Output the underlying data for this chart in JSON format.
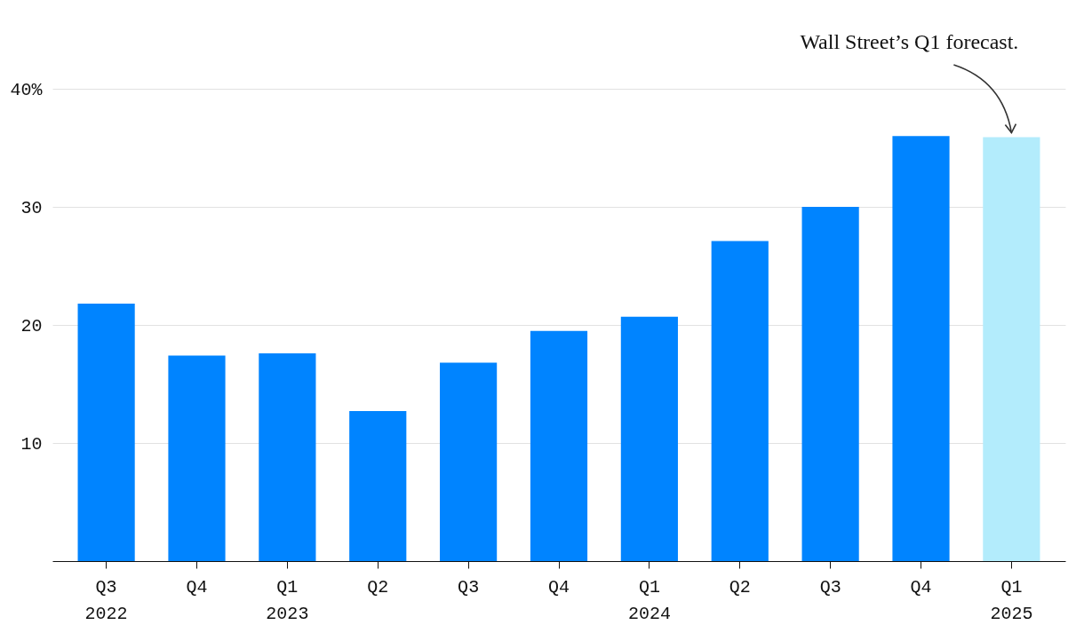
{
  "chart_data": {
    "type": "bar",
    "categories": [
      "Q3\n2022",
      "Q4",
      "Q1\n2023",
      "Q2",
      "Q3",
      "Q4",
      "Q1\n2024",
      "Q2",
      "Q3",
      "Q4",
      "Q1\n2025"
    ],
    "values": [
      21.8,
      17.4,
      17.6,
      12.7,
      16.8,
      19.5,
      20.7,
      27.1,
      30.0,
      36.0,
      35.9
    ],
    "colors": [
      "#0084ff",
      "#0084ff",
      "#0084ff",
      "#0084ff",
      "#0084ff",
      "#0084ff",
      "#0084ff",
      "#0084ff",
      "#0084ff",
      "#0084ff",
      "#b3ecfc"
    ],
    "ylim": [
      0,
      40
    ],
    "yticks": [
      10,
      20,
      30,
      {
        "value": 40,
        "label": "40%"
      }
    ],
    "grid": "y",
    "annotations": [
      {
        "text": "Wall Street’s Q1 forecast.",
        "x": "Q1\n2025",
        "y": 35.9
      }
    ]
  }
}
